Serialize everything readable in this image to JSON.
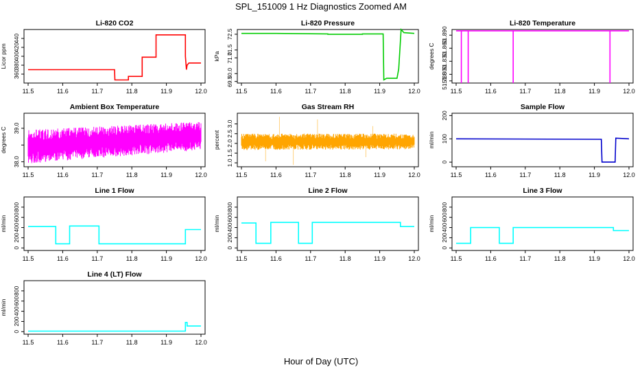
{
  "figure": {
    "title": "SPL_151009  1 Hz Diagnostics Zoomed AM",
    "xlabel": "Hour of Day (UTC)"
  },
  "chart_data": [
    {
      "type": "line",
      "title": "Li-820 CO2",
      "ylabel": "Licor ppm",
      "color": "#ff0000",
      "xlim": [
        11.5,
        12.0
      ],
      "ylim": [
        340,
        460
      ],
      "xticks": [
        11.5,
        11.6,
        11.7,
        11.8,
        11.9,
        12.0
      ],
      "xtick_labels": [
        "11.5",
        "11.6",
        "11.7",
        "11.8",
        "11.9",
        "12.0"
      ],
      "yticks": [
        360,
        380,
        400,
        420,
        440
      ],
      "ytick_labels": [
        "360",
        "380",
        "400",
        "420",
        "440"
      ],
      "series": [
        {
          "x": [
            11.5,
            11.75,
            11.751,
            11.79,
            11.79,
            11.83,
            11.83,
            11.87,
            11.87,
            11.955,
            11.955,
            11.958,
            11.96,
            11.965,
            12.0
          ],
          "y": [
            370,
            370,
            347,
            347,
            355,
            355,
            398,
            398,
            448,
            448,
            400,
            370,
            380,
            385,
            385
          ]
        }
      ]
    },
    {
      "type": "line",
      "title": "Li-820 Pressure",
      "ylabel": "kPa",
      "color": "#00cc00",
      "xlim": [
        11.5,
        12.0
      ],
      "ylim": [
        69.4,
        72.8
      ],
      "xticks": [
        11.5,
        11.6,
        11.7,
        11.8,
        11.9,
        12.0
      ],
      "xtick_labels": [
        "11.5",
        "11.6",
        "11.7",
        "11.8",
        "11.9",
        "12.0"
      ],
      "yticks": [
        69.5,
        70.0,
        71.0,
        71.5,
        72.5
      ],
      "ytick_labels": [
        "69.5",
        "70.0",
        "71.0",
        "71.5",
        "72.5"
      ],
      "series": [
        {
          "x": [
            11.5,
            11.6,
            11.75,
            11.75,
            11.85,
            11.85,
            11.91,
            11.912,
            11.92,
            11.95,
            11.955,
            11.962,
            11.97,
            12.0
          ],
          "y": [
            72.55,
            72.55,
            72.52,
            72.5,
            72.5,
            72.52,
            72.52,
            69.6,
            69.7,
            69.7,
            70.3,
            72.8,
            72.6,
            72.55
          ]
        }
      ]
    },
    {
      "type": "line",
      "title": "Li-820 Temperature",
      "ylabel": "degrees C",
      "color": "#ff00ff",
      "xlim": [
        11.5,
        12.0
      ],
      "ylim": [
        51.78,
        51.903
      ],
      "xticks": [
        11.5,
        11.6,
        11.7,
        11.8,
        11.9,
        12.0
      ],
      "xtick_labels": [
        "11.5",
        "11.6",
        "11.7",
        "11.8",
        "11.9",
        "12.0"
      ],
      "yticks": [
        51.785,
        51.8,
        51.83,
        51.86,
        51.89
      ],
      "ytick_labels": [
        "51.785",
        "51.800",
        "51.830",
        "51.860",
        "51.890"
      ],
      "series": [
        {
          "x": [
            11.5,
            11.515,
            11.515,
            11.515,
            11.535,
            11.535,
            11.535,
            11.665,
            11.665,
            11.665,
            11.945,
            11.945,
            11.945,
            12.0
          ],
          "y": [
            51.9,
            51.9,
            51.78,
            51.9,
            51.9,
            51.78,
            51.9,
            51.9,
            51.78,
            51.9,
            51.9,
            51.78,
            51.9,
            51.9
          ]
        }
      ]
    },
    {
      "type": "line",
      "title": "Ambient Box Temperature",
      "ylabel": "degrees C",
      "color": "#ff00ff",
      "xlim": [
        11.5,
        12.0
      ],
      "ylim": [
        37.85,
        39.45
      ],
      "xticks": [
        11.5,
        11.6,
        11.7,
        11.8,
        11.9,
        12.0
      ],
      "xtick_labels": [
        "11.5",
        "11.6",
        "11.7",
        "11.8",
        "11.9",
        "12.0"
      ],
      "yticks": [
        38.0,
        38.5,
        39.0
      ],
      "ytick_labels": [
        "38.0",
        "",
        "39.0"
      ],
      "noise": {
        "low_start": 37.95,
        "low_end": 38.35,
        "high_start": 38.95,
        "high_end": 39.2
      },
      "series": [
        {
          "x": [
            11.5,
            12.0
          ],
          "y": [
            38.4,
            38.75
          ]
        }
      ]
    },
    {
      "type": "line",
      "title": "Gas Stream RH",
      "ylabel": "percent",
      "color": "#ffa500",
      "xlim": [
        11.5,
        12.0
      ],
      "ylim": [
        0.8,
        3.55
      ],
      "xticks": [
        11.5,
        11.6,
        11.7,
        11.8,
        11.9,
        12.0
      ],
      "xtick_labels": [
        "11.5",
        "11.6",
        "11.7",
        "11.8",
        "11.9",
        "12.0"
      ],
      "yticks": [
        1.0,
        1.5,
        2.0,
        2.5,
        3.0
      ],
      "ytick_labels": [
        "1.0",
        "1.5",
        "2.0",
        "2.5",
        "3.0"
      ],
      "noise": {
        "low_start": 1.65,
        "low_end": 1.7,
        "high_start": 2.5,
        "high_end": 2.5
      },
      "spikes": [
        {
          "x": [
            11.61,
            11.72,
            11.88
          ],
          "y": [
            3.35,
            3.25,
            2.9
          ]
        },
        {
          "x": [
            11.65,
            11.57,
            11.86
          ],
          "y": [
            0.9,
            1.1,
            1.3
          ]
        }
      ],
      "series": [
        {
          "x": [
            11.5,
            12.0
          ],
          "y": [
            2.05,
            2.05
          ]
        }
      ]
    },
    {
      "type": "line",
      "title": "Sample Flow",
      "ylabel": "ml/min",
      "color": "#0000cc",
      "xlim": [
        11.5,
        12.0
      ],
      "ylim": [
        -20,
        210
      ],
      "xticks": [
        11.5,
        11.6,
        11.7,
        11.8,
        11.9,
        12.0
      ],
      "xtick_labels": [
        "11.5",
        "11.6",
        "11.7",
        "11.8",
        "11.9",
        "12.0"
      ],
      "yticks": [
        0,
        100,
        200
      ],
      "ytick_labels": [
        "0",
        "100",
        "200"
      ],
      "series": [
        {
          "x": [
            11.5,
            11.92,
            11.922,
            11.96,
            11.962,
            12.0
          ],
          "y": [
            100,
            98,
            0,
            0,
            103,
            100
          ]
        }
      ]
    },
    {
      "type": "line",
      "title": "Line 1 Flow",
      "ylabel": "ml/min",
      "color": "#00ffff",
      "xlim": [
        11.5,
        12.0
      ],
      "ylim": [
        -50,
        1000
      ],
      "xticks": [
        11.5,
        11.6,
        11.7,
        11.8,
        11.9,
        12.0
      ],
      "xtick_labels": [
        "11.5",
        "11.6",
        "11.7",
        "11.8",
        "11.9",
        "12.0"
      ],
      "yticks": [
        0,
        200,
        400,
        600,
        800
      ],
      "ytick_labels": [
        "0",
        "200",
        "400",
        "600",
        "800"
      ],
      "series": [
        {
          "x": [
            11.5,
            11.58,
            11.58,
            11.62,
            11.62,
            11.705,
            11.705,
            11.955,
            11.955,
            12.0
          ],
          "y": [
            420,
            420,
            80,
            80,
            430,
            430,
            80,
            80,
            360,
            360
          ]
        }
      ]
    },
    {
      "type": "line",
      "title": "Line 2 Flow",
      "ylabel": "ml/min",
      "color": "#00ffff",
      "xlim": [
        11.5,
        12.0
      ],
      "ylim": [
        -50,
        1000
      ],
      "xticks": [
        11.5,
        11.6,
        11.7,
        11.8,
        11.9,
        12.0
      ],
      "xtick_labels": [
        "11.5",
        "11.6",
        "11.7",
        "11.8",
        "11.9",
        "12.0"
      ],
      "yticks": [
        0,
        200,
        400,
        600,
        800
      ],
      "ytick_labels": [
        "0",
        "200",
        "400",
        "600",
        "800"
      ],
      "series": [
        {
          "x": [
            11.5,
            11.542,
            11.542,
            11.585,
            11.585,
            11.665,
            11.665,
            11.705,
            11.705,
            11.96,
            11.96,
            12.0
          ],
          "y": [
            490,
            490,
            90,
            90,
            500,
            500,
            90,
            90,
            500,
            500,
            420,
            420
          ]
        }
      ]
    },
    {
      "type": "line",
      "title": "Line 3 Flow",
      "ylabel": "ml/min",
      "color": "#00ffff",
      "xlim": [
        11.5,
        12.0
      ],
      "ylim": [
        -50,
        1000
      ],
      "xticks": [
        11.5,
        11.6,
        11.7,
        11.8,
        11.9,
        12.0
      ],
      "xtick_labels": [
        "11.5",
        "11.6",
        "11.7",
        "11.8",
        "11.9",
        "12.0"
      ],
      "yticks": [
        0,
        200,
        400,
        600,
        800
      ],
      "ytick_labels": [
        "0",
        "200",
        "400",
        "600",
        "800"
      ],
      "series": [
        {
          "x": [
            11.5,
            11.542,
            11.542,
            11.625,
            11.625,
            11.665,
            11.665,
            11.955,
            11.955,
            12.0
          ],
          "y": [
            90,
            90,
            400,
            400,
            90,
            90,
            400,
            400,
            340,
            340
          ]
        }
      ]
    },
    {
      "type": "line",
      "title": "Line 4 (LT) Flow",
      "ylabel": "ml/min",
      "color": "#00ffff",
      "xlim": [
        11.5,
        12.0
      ],
      "ylim": [
        -50,
        1000
      ],
      "xticks": [
        11.5,
        11.6,
        11.7,
        11.8,
        11.9,
        12.0
      ],
      "xtick_labels": [
        "11.5",
        "11.6",
        "11.7",
        "11.8",
        "11.9",
        "12.0"
      ],
      "yticks": [
        0,
        200,
        400,
        600,
        800
      ],
      "ytick_labels": [
        "0",
        "200",
        "400",
        "600",
        "800"
      ],
      "series": [
        {
          "x": [
            11.5,
            11.955,
            11.955,
            11.96,
            11.96,
            12.0
          ],
          "y": [
            10,
            10,
            180,
            180,
            110,
            110
          ]
        }
      ]
    }
  ]
}
